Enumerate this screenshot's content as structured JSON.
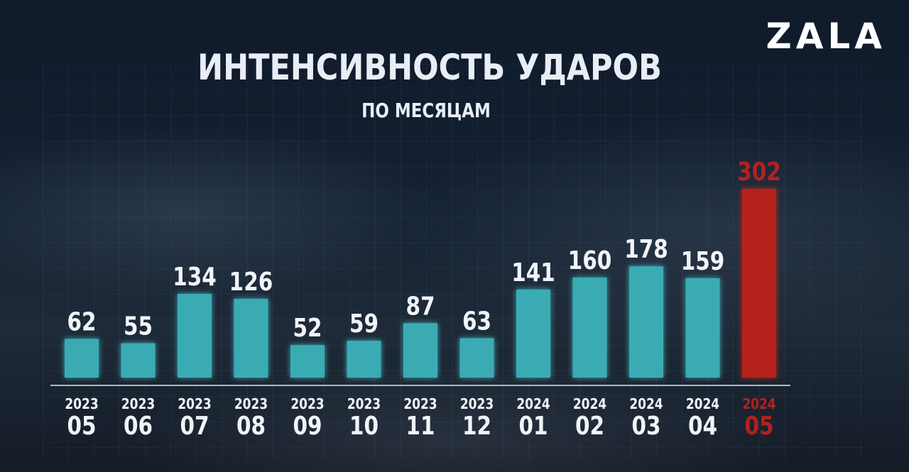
{
  "logo": "ZALA",
  "colors": {
    "bar": "#3aabb3",
    "highlight": "#b5201e",
    "text": "#f1f4f8",
    "axis": "#c9d3dd"
  },
  "chart_data": {
    "type": "bar",
    "title": "ИНТЕНСИВНОСТЬ УДАРОВ",
    "subtitle": "ПО МЕСЯЦАМ",
    "categories": [
      {
        "year": "2023",
        "month": "05"
      },
      {
        "year": "2023",
        "month": "06"
      },
      {
        "year": "2023",
        "month": "07"
      },
      {
        "year": "2023",
        "month": "08"
      },
      {
        "year": "2023",
        "month": "09"
      },
      {
        "year": "2023",
        "month": "10"
      },
      {
        "year": "2023",
        "month": "11"
      },
      {
        "year": "2023",
        "month": "12"
      },
      {
        "year": "2024",
        "month": "01"
      },
      {
        "year": "2024",
        "month": "02"
      },
      {
        "year": "2024",
        "month": "03"
      },
      {
        "year": "2024",
        "month": "04"
      },
      {
        "year": "2024",
        "month": "05"
      }
    ],
    "values": [
      62,
      55,
      134,
      126,
      52,
      59,
      87,
      63,
      141,
      160,
      178,
      159,
      302
    ],
    "highlight_index": 12,
    "ylim": [
      0,
      302
    ],
    "grid": false,
    "legend": "none"
  }
}
